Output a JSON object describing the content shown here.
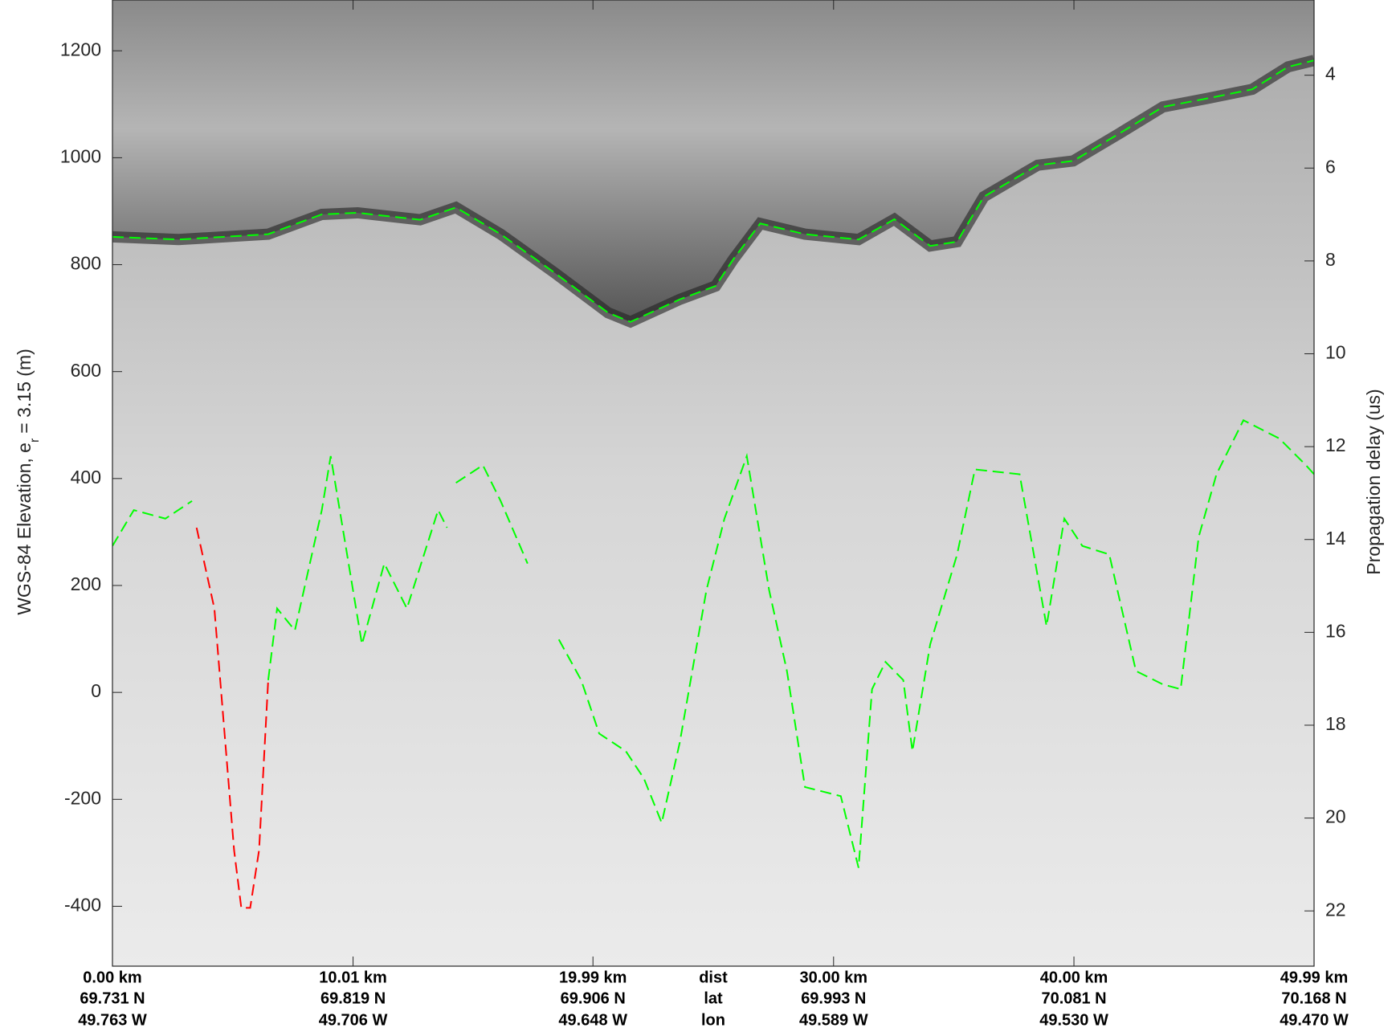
{
  "chart_data": {
    "type": "line",
    "ylabel": {
      "main": "WGS-84 Elevation, e",
      "sub": "r",
      "rest": "= 3.15 (m)"
    },
    "y2label": "Propagation delay (us)",
    "xlim": [
      0,
      49.99
    ],
    "xticks": [
      {
        "value": 0,
        "label": "0.00 km",
        "lat": "69.731 N",
        "lon": "49.763 W"
      },
      {
        "value": 10.01,
        "label": "10.01 km",
        "lat": "69.819 N",
        "lon": "49.706 W"
      },
      {
        "value": 19.99,
        "label": "19.99 km",
        "lat": "69.906 N",
        "lon": "49.648 W"
      },
      {
        "value": 30.0,
        "label": "30.00 km",
        "lat": "69.993 N",
        "lon": "49.589 W"
      },
      {
        "value": 40.0,
        "label": "40.00 km",
        "lat": "70.081 N",
        "lon": "49.530 W"
      },
      {
        "value": 49.99,
        "label": "49.99 km",
        "lat": "70.168 N",
        "lon": "49.470 W"
      }
    ],
    "xtick_row_labels": [
      "dist",
      "lat",
      "lon"
    ],
    "ylim": [
      -512,
      1295
    ],
    "yticks": [
      -400,
      -200,
      0,
      200,
      400,
      600,
      800,
      1000,
      1200
    ],
    "y2lim": [
      2.38,
      23.19
    ],
    "y2reverse": true,
    "y2ticks": [
      4,
      6,
      8,
      10,
      12,
      14,
      16,
      18,
      20,
      22
    ],
    "series": [
      {
        "color": "#00ff00",
        "role": "surface",
        "x": [
          0,
          2.75,
          6.48,
          8.71,
          10.2,
          12.8,
          14.29,
          16.15,
          18.39,
          20.62,
          21.55,
          23.6,
          25.09,
          25.83,
          26.95,
          28.81,
          31.04,
          32.53,
          34.02,
          35.14,
          36.25,
          38.49,
          39.97,
          41.84,
          43.7,
          45.56,
          47.42,
          48.91,
          49.99
        ],
        "values": [
          852,
          847,
          857,
          894,
          897,
          884,
          907,
          857,
          785,
          710,
          693,
          735,
          760,
          810,
          877,
          857,
          847,
          885,
          835,
          843,
          927,
          986,
          994,
          1044,
          1095,
          1111,
          1128,
          1170,
          1182
        ]
      },
      {
        "color": "#00ff00",
        "role": "bed",
        "x": [
          0,
          0.89,
          2.2,
          3.31,
          4.9,
          6.48,
          6.85,
          7.59,
          8.71,
          9.08,
          9.64,
          10.38,
          11.31,
          12.25,
          13.55,
          13.92,
          14.11,
          14.29,
          15.41,
          16.15,
          17.27,
          17.94,
          18.57,
          19.5,
          20.25,
          21.36,
          22.11,
          22.85,
          23.6,
          24.71,
          25.46,
          26.39,
          27.32,
          28.06,
          28.81,
          30.3,
          31.04,
          31.6,
          32.16,
          32.9,
          33.28,
          34.02,
          35.14,
          35.88,
          37.74,
          38.86,
          39.6,
          40.35,
          41.47,
          42.58,
          43.7,
          44.44,
          45.19,
          45.93,
          47.05,
          48.54,
          49.65,
          49.99
        ],
        "values": [
          274,
          341,
          325,
          358,
          null,
          23,
          157,
          116,
          341,
          442,
          291,
          90,
          241,
          157,
          341,
          308,
          null,
          392,
          425,
          358,
          241,
          null,
          99,
          23,
          -77,
          -110,
          -161,
          -244,
          -94,
          191,
          325,
          442,
          191,
          40,
          -177,
          -194,
          -328,
          6,
          57,
          23,
          -110,
          90,
          258,
          417,
          408,
          124,
          325,
          274,
          258,
          40,
          15,
          6,
          291,
          408,
          509,
          475,
          425,
          408
        ]
      },
      {
        "color": "#ff0000",
        "role": "bed",
        "x": [
          3.5,
          4.24,
          5.06,
          5.36,
          5.73,
          6.1,
          6.48
        ],
        "values": [
          308,
          157,
          -295,
          -403,
          -403,
          -295,
          23
        ]
      }
    ]
  }
}
